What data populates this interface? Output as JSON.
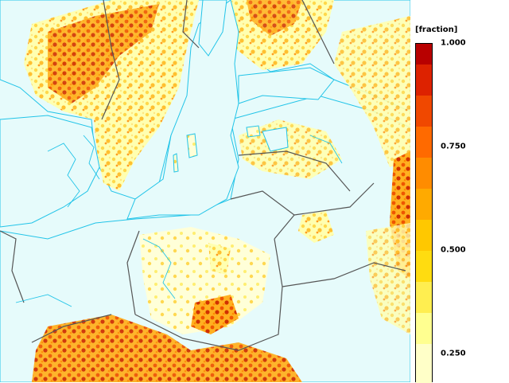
{
  "map": {
    "region": "Baltic Sea and Northern Europe",
    "sea_color": "#e6fbfb",
    "contour_color": "#22c4e8",
    "border_color": "#555555"
  },
  "legend": {
    "unit_label": "[fraction]",
    "ticks": [
      "1.000",
      "0.750",
      "0.500",
      "0.250"
    ],
    "tick_values": [
      1.0,
      0.75,
      0.5,
      0.25
    ],
    "range": [
      0.18,
      1.0
    ],
    "bands": [
      {
        "color": "#b80000",
        "from": 0.95,
        "to": 1.0
      },
      {
        "color": "#dd2200",
        "from": 0.875,
        "to": 0.95
      },
      {
        "color": "#f04800",
        "from": 0.8,
        "to": 0.875
      },
      {
        "color": "#ff6a00",
        "from": 0.725,
        "to": 0.8
      },
      {
        "color": "#ff8c00",
        "from": 0.65,
        "to": 0.725
      },
      {
        "color": "#ffaa00",
        "from": 0.575,
        "to": 0.65
      },
      {
        "color": "#ffc800",
        "from": 0.5,
        "to": 0.575
      },
      {
        "color": "#ffdc10",
        "from": 0.425,
        "to": 0.5
      },
      {
        "color": "#ffee50",
        "from": 0.35,
        "to": 0.425
      },
      {
        "color": "#ffff90",
        "from": 0.275,
        "to": 0.35
      },
      {
        "color": "#ffffc8",
        "from": 0.18,
        "to": 0.275
      }
    ]
  }
}
